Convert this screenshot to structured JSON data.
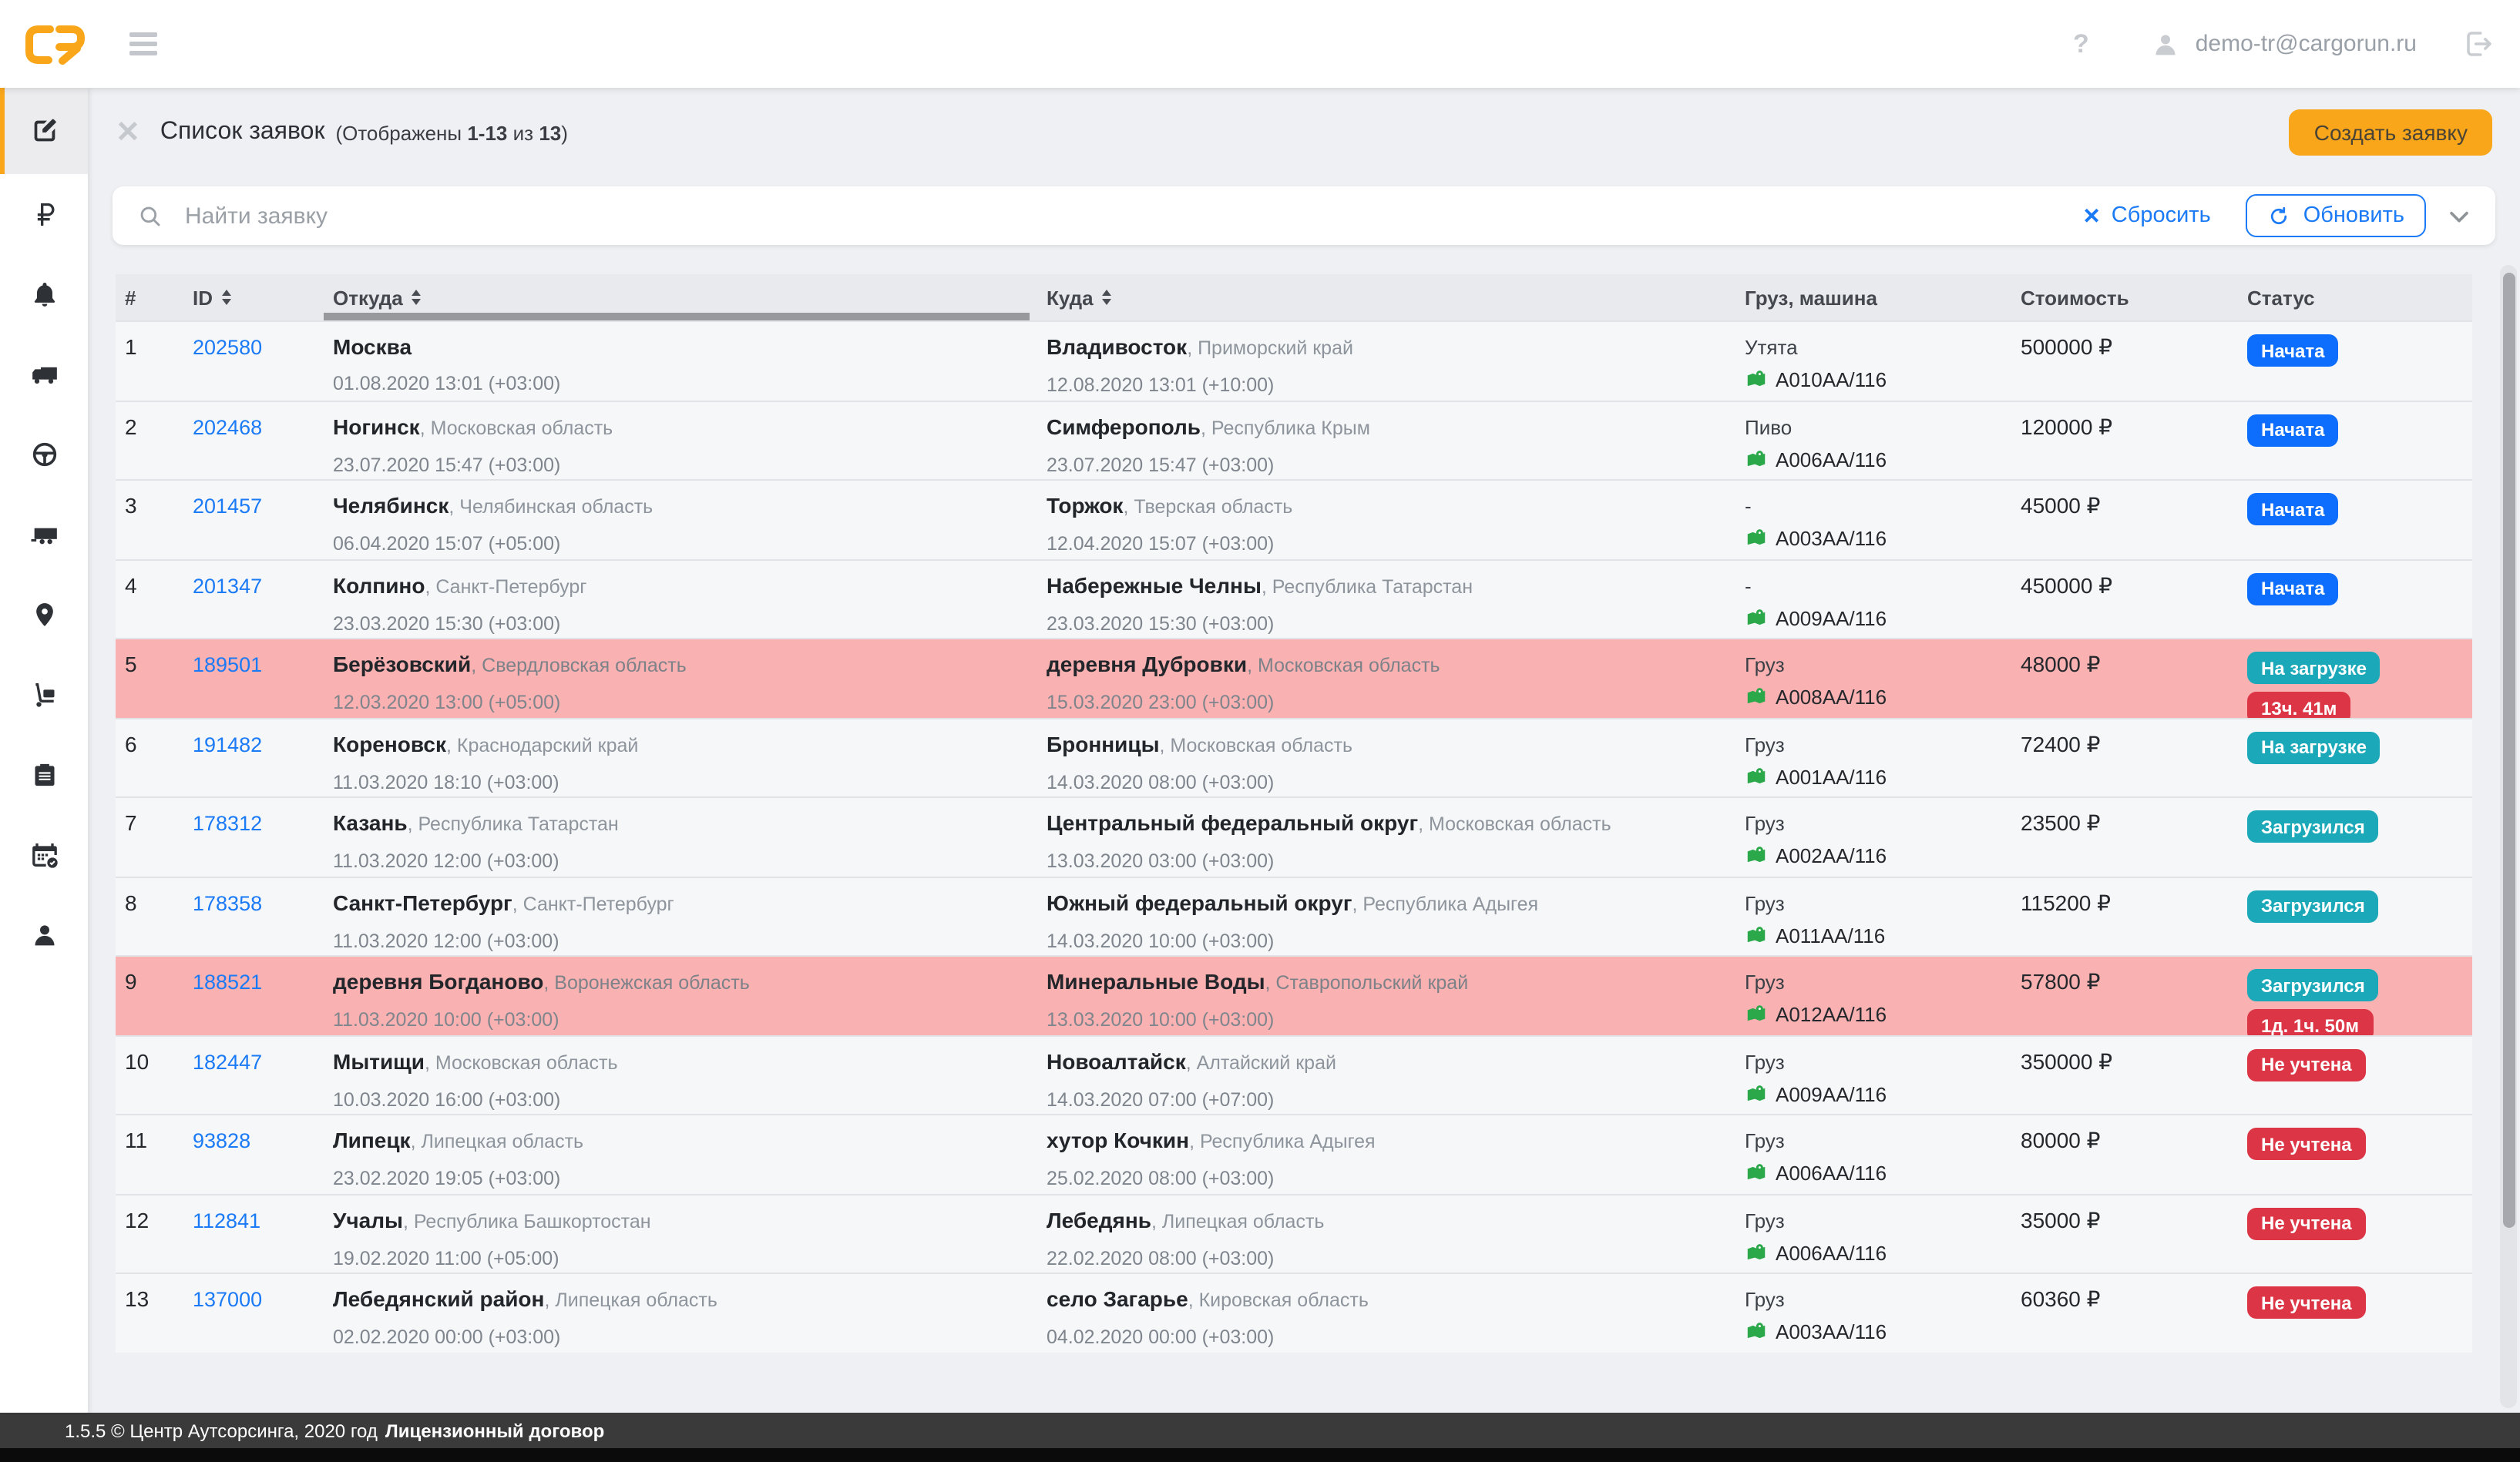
{
  "colors": {
    "accent": "#F9A61B",
    "link": "#1B7AF5",
    "status_started": "#0D6EFD",
    "status_loading": "#1BA8B8",
    "status_danger": "#DC3545",
    "row_highlight": "#F9B1B1",
    "vehicle_icon_green": "#2BA84A"
  },
  "topbar": {
    "help": "?",
    "email": "demo-tr@cargorun.ru"
  },
  "sidebar": {
    "items": [
      {
        "name": "requests",
        "icon": "compose-icon",
        "active": true
      },
      {
        "name": "payments",
        "icon": "ruble-icon",
        "active": false
      },
      {
        "name": "notifications",
        "icon": "bell-icon",
        "active": false
      },
      {
        "name": "trucks",
        "icon": "truck-icon",
        "active": false
      },
      {
        "name": "drivers",
        "icon": "steering-wheel-icon",
        "active": false
      },
      {
        "name": "trailers",
        "icon": "trailer-icon",
        "active": false
      },
      {
        "name": "tracking",
        "icon": "map-pin-icon",
        "active": false
      },
      {
        "name": "cargo",
        "icon": "hand-truck-icon",
        "active": false
      },
      {
        "name": "documents",
        "icon": "clipboard-icon",
        "active": false
      },
      {
        "name": "schedule",
        "icon": "calendar-icon",
        "active": false
      },
      {
        "name": "profile",
        "icon": "user-icon",
        "active": false
      }
    ]
  },
  "page": {
    "title": "Список заявок",
    "shown_prefix": "(Отображены ",
    "shown_range": "1-13",
    "shown_of": " из ",
    "shown_total": "13",
    "shown_suffix": ")",
    "create_button": "Создать заявку"
  },
  "filters": {
    "search_placeholder": "Найти заявку",
    "reset_label": "Сбросить",
    "refresh_label": "Обновить"
  },
  "table": {
    "headers": [
      {
        "label": "#",
        "sortable": false
      },
      {
        "label": "ID",
        "sortable": true
      },
      {
        "label": "Откуда",
        "sortable": true
      },
      {
        "label": "Куда",
        "sortable": true
      },
      {
        "label": "Груз, машина",
        "sortable": false
      },
      {
        "label": "Стоимость",
        "sortable": false
      },
      {
        "label": "Статус",
        "sortable": false
      }
    ],
    "rows": [
      {
        "num": "1",
        "id": "202580",
        "from_city": "Москва",
        "from_region": "",
        "from_date": "01.08.2020 13:01 (+03:00)",
        "to_city": "Владивосток",
        "to_region": "Приморский край",
        "to_date": "12.08.2020 13:01 (+10:00)",
        "cargo": "Утята",
        "vehicle": "A010AA/116",
        "price": "500000 ₽",
        "statuses": [
          {
            "label": "Начата",
            "type": "primary"
          }
        ],
        "highlight": false
      },
      {
        "num": "2",
        "id": "202468",
        "from_city": "Ногинск",
        "from_region": "Московская область",
        "from_date": "23.07.2020 15:47 (+03:00)",
        "to_city": "Симферополь",
        "to_region": "Республика Крым",
        "to_date": "23.07.2020 15:47 (+03:00)",
        "cargo": "Пиво",
        "vehicle": "A006AA/116",
        "price": "120000 ₽",
        "statuses": [
          {
            "label": "Начата",
            "type": "primary"
          }
        ],
        "highlight": false
      },
      {
        "num": "3",
        "id": "201457",
        "from_city": "Челябинск",
        "from_region": "Челябинская область",
        "from_date": "06.04.2020 15:07 (+05:00)",
        "to_city": "Торжок",
        "to_region": "Тверская область",
        "to_date": "12.04.2020 15:07 (+03:00)",
        "cargo": "-",
        "vehicle": "A003AA/116",
        "price": "45000 ₽",
        "statuses": [
          {
            "label": "Начата",
            "type": "primary"
          }
        ],
        "highlight": false
      },
      {
        "num": "4",
        "id": "201347",
        "from_city": "Колпино",
        "from_region": "Санкт-Петербург",
        "from_date": "23.03.2020 15:30 (+03:00)",
        "to_city": "Набережные Челны",
        "to_region": "Республика Татарстан",
        "to_date": "23.03.2020 15:30 (+03:00)",
        "cargo": "-",
        "vehicle": "A009AA/116",
        "price": "450000 ₽",
        "statuses": [
          {
            "label": "Начата",
            "type": "primary"
          }
        ],
        "highlight": false
      },
      {
        "num": "5",
        "id": "189501",
        "from_city": "Берёзовский",
        "from_region": "Свердловская область",
        "from_date": "12.03.2020 13:00 (+05:00)",
        "to_city": "деревня Дубровки",
        "to_region": "Московская область",
        "to_date": "15.03.2020 23:00 (+03:00)",
        "cargo": "Груз",
        "vehicle": "A008AA/116",
        "price": "48000 ₽",
        "statuses": [
          {
            "label": "На загрузке",
            "type": "info"
          },
          {
            "label": "13ч. 41м",
            "type": "danger"
          }
        ],
        "highlight": true
      },
      {
        "num": "6",
        "id": "191482",
        "from_city": "Кореновск",
        "from_region": "Краснодарский край",
        "from_date": "11.03.2020 18:10 (+03:00)",
        "to_city": "Бронницы",
        "to_region": "Московская область",
        "to_date": "14.03.2020 08:00 (+03:00)",
        "cargo": "Груз",
        "vehicle": "A001AA/116",
        "price": "72400 ₽",
        "statuses": [
          {
            "label": "На загрузке",
            "type": "info"
          }
        ],
        "highlight": false
      },
      {
        "num": "7",
        "id": "178312",
        "from_city": "Казань",
        "from_region": "Республика Татарстан",
        "from_date": "11.03.2020 12:00 (+03:00)",
        "to_city": "Центральный федеральный округ",
        "to_region": "Московская область",
        "to_date": "13.03.2020 03:00 (+03:00)",
        "cargo": "Груз",
        "vehicle": "A002AA/116",
        "price": "23500 ₽",
        "statuses": [
          {
            "label": "Загрузился",
            "type": "info"
          }
        ],
        "highlight": false
      },
      {
        "num": "8",
        "id": "178358",
        "from_city": "Санкт-Петербург",
        "from_region": "Санкт-Петербург",
        "from_date": "11.03.2020 12:00 (+03:00)",
        "to_city": "Южный федеральный округ",
        "to_region": "Республика Адыгея",
        "to_date": "14.03.2020 10:00 (+03:00)",
        "cargo": "Груз",
        "vehicle": "A011AA/116",
        "price": "115200 ₽",
        "statuses": [
          {
            "label": "Загрузился",
            "type": "info"
          }
        ],
        "highlight": false
      },
      {
        "num": "9",
        "id": "188521",
        "from_city": "деревня Богданово",
        "from_region": "Воронежская область",
        "from_date": "11.03.2020 10:00 (+03:00)",
        "to_city": "Минеральные Воды",
        "to_region": "Ставропольский край",
        "to_date": "13.03.2020 10:00 (+03:00)",
        "cargo": "Груз",
        "vehicle": "A012AA/116",
        "price": "57800 ₽",
        "statuses": [
          {
            "label": "Загрузился",
            "type": "info"
          },
          {
            "label": "1д. 1ч. 50м",
            "type": "danger"
          }
        ],
        "highlight": true
      },
      {
        "num": "10",
        "id": "182447",
        "from_city": "Мытищи",
        "from_region": "Московская область",
        "from_date": "10.03.2020 16:00 (+03:00)",
        "to_city": "Новоалтайск",
        "to_region": "Алтайский край",
        "to_date": "14.03.2020 07:00 (+07:00)",
        "cargo": "Груз",
        "vehicle": "A009AA/116",
        "price": "350000 ₽",
        "statuses": [
          {
            "label": "Не учтена",
            "type": "danger"
          }
        ],
        "highlight": false
      },
      {
        "num": "11",
        "id": "93828",
        "from_city": "Липецк",
        "from_region": "Липецкая область",
        "from_date": "23.02.2020 19:05 (+03:00)",
        "to_city": "хутор Кочкин",
        "to_region": "Республика Адыгея",
        "to_date": "25.02.2020 08:00 (+03:00)",
        "cargo": "Груз",
        "vehicle": "A006AA/116",
        "price": "80000 ₽",
        "statuses": [
          {
            "label": "Не учтена",
            "type": "danger"
          }
        ],
        "highlight": false
      },
      {
        "num": "12",
        "id": "112841",
        "from_city": "Учалы",
        "from_region": "Республика Башкортостан",
        "from_date": "19.02.2020 11:00 (+05:00)",
        "to_city": "Лебедянь",
        "to_region": "Липецкая область",
        "to_date": "22.02.2020 08:00 (+03:00)",
        "cargo": "Груз",
        "vehicle": "A006AA/116",
        "price": "35000 ₽",
        "statuses": [
          {
            "label": "Не учтена",
            "type": "danger"
          }
        ],
        "highlight": false
      },
      {
        "num": "13",
        "id": "137000",
        "from_city": "Лебедянский район",
        "from_region": "Липецкая область",
        "from_date": "02.02.2020 00:00 (+03:00)",
        "to_city": "село Загарье",
        "to_region": "Кировская область",
        "to_date": "04.02.2020 00:00 (+03:00)",
        "cargo": "Груз",
        "vehicle": "A003AA/116",
        "price": "60360 ₽",
        "statuses": [
          {
            "label": "Не учтена",
            "type": "danger"
          }
        ],
        "highlight": false
      }
    ]
  },
  "footer": {
    "version_text": "1.5.5 © Центр Аутсорсинга, 2020 год",
    "license_link": "Лицензионный договор"
  }
}
